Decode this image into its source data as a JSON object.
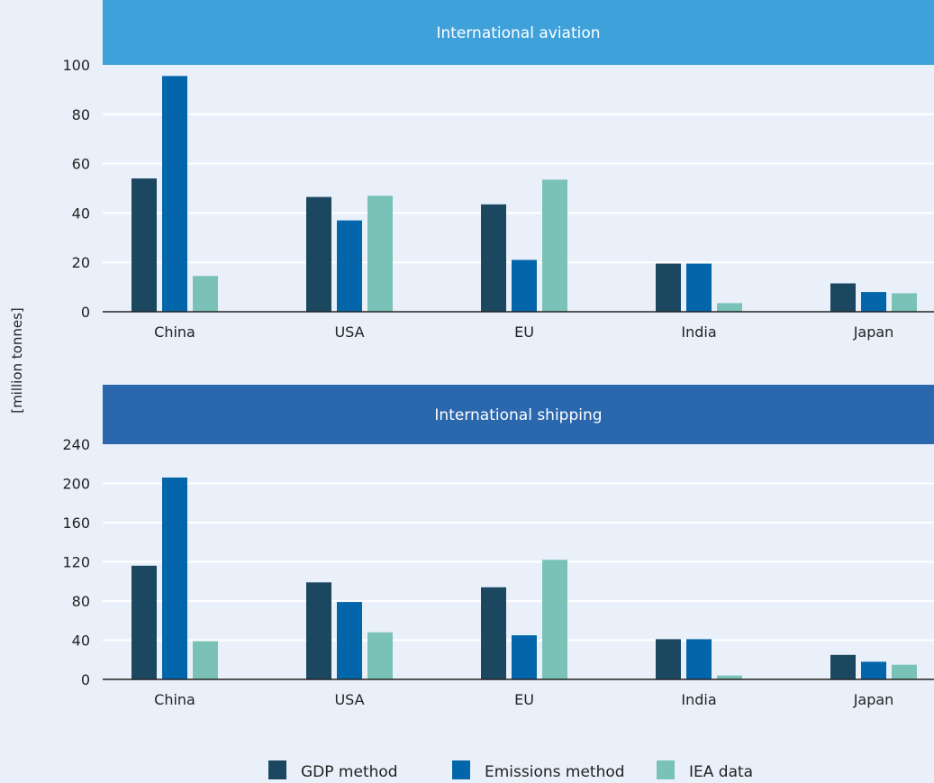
{
  "colors": {
    "background": "#e9f0fa",
    "gdp": "#1b4760",
    "emissions": "#0366aa",
    "iea": "#7ac2b8",
    "banner_aviation": "#3fa1da",
    "banner_shipping": "#2a67ad",
    "grid": "#ffffff",
    "axis": "#222222"
  },
  "ylabel": "[million tonnes]",
  "legend": {
    "placement": "bottom-center",
    "items": [
      "GDP method",
      "Emissions method",
      "IEA data"
    ]
  },
  "chart_data": [
    {
      "type": "bar",
      "title": "International aviation",
      "categories": [
        "China",
        "USA",
        "EU",
        "India",
        "Japan"
      ],
      "series": [
        {
          "name": "GDP method",
          "values": [
            54,
            46.5,
            43.5,
            19.5,
            11.5
          ]
        },
        {
          "name": "Emissions method",
          "values": [
            95.5,
            37,
            21,
            19.5,
            8
          ]
        },
        {
          "name": "IEA data",
          "values": [
            14.5,
            47,
            53.5,
            3.5,
            7.5
          ]
        }
      ],
      "ylim": [
        0,
        100
      ],
      "yticks": [
        0,
        20,
        40,
        60,
        80,
        100
      ],
      "grid": true
    },
    {
      "type": "bar",
      "title": "International shipping",
      "categories": [
        "China",
        "USA",
        "EU",
        "India",
        "Japan"
      ],
      "series": [
        {
          "name": "GDP method",
          "values": [
            116,
            99,
            94,
            41,
            25
          ]
        },
        {
          "name": "Emissions method",
          "values": [
            206,
            79,
            45,
            41,
            18
          ]
        },
        {
          "name": "IEA data",
          "values": [
            39,
            48,
            122,
            4,
            15
          ]
        }
      ],
      "ylim": [
        0,
        240
      ],
      "yticks": [
        0,
        40,
        80,
        120,
        160,
        200,
        240
      ],
      "grid": true
    }
  ]
}
